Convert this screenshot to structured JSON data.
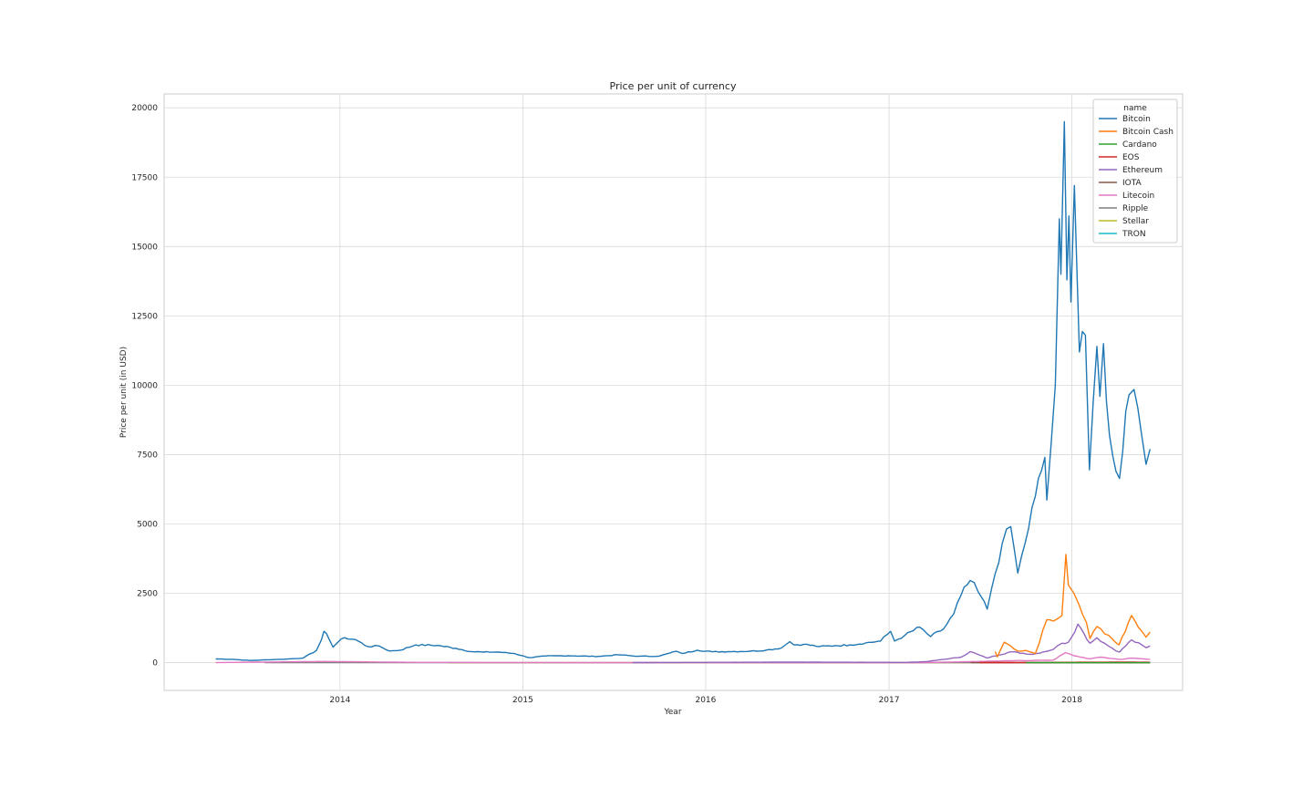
{
  "chart_data": {
    "type": "line",
    "title": "Price per unit of currency",
    "xlabel": "Year",
    "ylabel": "Price per unit (in USD)",
    "xlim": [
      "2013-01-15",
      "2018-08-10"
    ],
    "ylim": [
      -1000,
      20500
    ],
    "x_ticks": [
      "2014",
      "2015",
      "2016",
      "2017",
      "2018"
    ],
    "y_ticks": [
      0,
      2500,
      5000,
      7500,
      10000,
      12500,
      15000,
      17500,
      20000
    ],
    "grid": true,
    "legend": {
      "title": "name",
      "position": "top-right"
    },
    "series": [
      {
        "name": "Bitcoin",
        "color": "#1f77b4",
        "points": [
          [
            "2013-04-28",
            135
          ],
          [
            "2013-06-01",
            122
          ],
          [
            "2013-07-05",
            78
          ],
          [
            "2013-08-10",
            104
          ],
          [
            "2013-09-15",
            128
          ],
          [
            "2013-10-20",
            170
          ],
          [
            "2013-11-15",
            440
          ],
          [
            "2013-11-25",
            820
          ],
          [
            "2013-11-30",
            1130
          ],
          [
            "2013-12-05",
            1050
          ],
          [
            "2013-12-18",
            560
          ],
          [
            "2013-12-28",
            740
          ],
          [
            "2014-01-10",
            900
          ],
          [
            "2014-02-01",
            830
          ],
          [
            "2014-02-25",
            580
          ],
          [
            "2014-03-20",
            600
          ],
          [
            "2014-04-10",
            420
          ],
          [
            "2014-05-01",
            450
          ],
          [
            "2014-06-01",
            640
          ],
          [
            "2014-07-15",
            620
          ],
          [
            "2014-08-20",
            520
          ],
          [
            "2014-09-20",
            400
          ],
          [
            "2014-10-15",
            380
          ],
          [
            "2014-11-15",
            380
          ],
          [
            "2014-12-15",
            330
          ],
          [
            "2015-01-14",
            180
          ],
          [
            "2015-02-15",
            240
          ],
          [
            "2015-04-01",
            250
          ],
          [
            "2015-06-01",
            225
          ],
          [
            "2015-07-10",
            285
          ],
          [
            "2015-08-20",
            230
          ],
          [
            "2015-09-30",
            236
          ],
          [
            "2015-11-04",
            410
          ],
          [
            "2015-11-15",
            330
          ],
          [
            "2015-12-15",
            450
          ],
          [
            "2016-01-15",
            390
          ],
          [
            "2016-02-15",
            400
          ],
          [
            "2016-03-30",
            415
          ],
          [
            "2016-04-30",
            450
          ],
          [
            "2016-05-31",
            530
          ],
          [
            "2016-06-17",
            760
          ],
          [
            "2016-06-25",
            640
          ],
          [
            "2016-07-15",
            665
          ],
          [
            "2016-08-15",
            580
          ],
          [
            "2016-09-15",
            610
          ],
          [
            "2016-10-15",
            640
          ],
          [
            "2016-11-15",
            710
          ],
          [
            "2016-12-15",
            780
          ],
          [
            "2017-01-04",
            1130
          ],
          [
            "2017-01-12",
            780
          ],
          [
            "2017-02-01",
            980
          ],
          [
            "2017-03-03",
            1280
          ],
          [
            "2017-03-25",
            940
          ],
          [
            "2017-04-20",
            1220
          ],
          [
            "2017-05-10",
            1750
          ],
          [
            "2017-05-25",
            2450
          ],
          [
            "2017-06-12",
            2960
          ],
          [
            "2017-06-28",
            2550
          ],
          [
            "2017-07-16",
            1930
          ],
          [
            "2017-07-25",
            2700
          ],
          [
            "2017-08-15",
            4300
          ],
          [
            "2017-09-01",
            4900
          ],
          [
            "2017-09-15",
            3230
          ],
          [
            "2017-09-30",
            4340
          ],
          [
            "2017-10-20",
            6000
          ],
          [
            "2017-11-08",
            7400
          ],
          [
            "2017-11-12",
            5860
          ],
          [
            "2017-11-29",
            10000
          ],
          [
            "2017-12-07",
            16000
          ],
          [
            "2017-12-10",
            14000
          ],
          [
            "2017-12-17",
            19500
          ],
          [
            "2017-12-22",
            13800
          ],
          [
            "2017-12-26",
            16100
          ],
          [
            "2017-12-30",
            13000
          ],
          [
            "2018-01-06",
            17200
          ],
          [
            "2018-01-16",
            11200
          ],
          [
            "2018-01-28",
            11800
          ],
          [
            "2018-02-05",
            6950
          ],
          [
            "2018-02-20",
            11400
          ],
          [
            "2018-02-26",
            9600
          ],
          [
            "2018-03-05",
            11500
          ],
          [
            "2018-03-17",
            8200
          ],
          [
            "2018-03-30",
            6900
          ],
          [
            "2018-04-06",
            6640
          ],
          [
            "2018-04-25",
            9650
          ],
          [
            "2018-05-05",
            9850
          ],
          [
            "2018-05-20",
            8250
          ],
          [
            "2018-05-29",
            7150
          ],
          [
            "2018-06-06",
            7700
          ]
        ]
      },
      {
        "name": "Bitcoin Cash",
        "color": "#ff7f0e",
        "points": [
          [
            "2017-08-01",
            400
          ],
          [
            "2017-08-05",
            210
          ],
          [
            "2017-08-19",
            740
          ],
          [
            "2017-09-01",
            600
          ],
          [
            "2017-09-15",
            420
          ],
          [
            "2017-10-01",
            440
          ],
          [
            "2017-10-20",
            330
          ],
          [
            "2017-11-12",
            1550
          ],
          [
            "2017-11-25",
            1500
          ],
          [
            "2017-12-12",
            1700
          ],
          [
            "2017-12-20",
            3900
          ],
          [
            "2017-12-25",
            2800
          ],
          [
            "2018-01-05",
            2500
          ],
          [
            "2018-01-15",
            2100
          ],
          [
            "2018-01-30",
            1450
          ],
          [
            "2018-02-06",
            870
          ],
          [
            "2018-02-20",
            1300
          ],
          [
            "2018-03-15",
            990
          ],
          [
            "2018-04-05",
            640
          ],
          [
            "2018-04-30",
            1700
          ],
          [
            "2018-05-20",
            1150
          ],
          [
            "2018-05-29",
            920
          ],
          [
            "2018-06-06",
            1100
          ]
        ]
      },
      {
        "name": "Cardano",
        "color": "#2ca02c",
        "points": [
          [
            "2017-10-01",
            0.03
          ],
          [
            "2017-12-01",
            0.13
          ],
          [
            "2018-01-04",
            1.1
          ],
          [
            "2018-03-01",
            0.3
          ],
          [
            "2018-06-06",
            0.22
          ]
        ]
      },
      {
        "name": "EOS",
        "color": "#d62728",
        "points": [
          [
            "2017-07-01",
            2
          ],
          [
            "2017-12-01",
            7
          ],
          [
            "2018-01-15",
            15
          ],
          [
            "2018-04-29",
            20
          ],
          [
            "2018-06-06",
            14
          ]
        ]
      },
      {
        "name": "Ethereum",
        "color": "#9467bd",
        "points": [
          [
            "2015-08-08",
            2
          ],
          [
            "2016-06-15",
            20
          ],
          [
            "2017-02-01",
            10
          ],
          [
            "2017-03-15",
            35
          ],
          [
            "2017-05-25",
            200
          ],
          [
            "2017-06-12",
            400
          ],
          [
            "2017-07-15",
            170
          ],
          [
            "2017-09-01",
            390
          ],
          [
            "2017-10-15",
            300
          ],
          [
            "2017-11-25",
            480
          ],
          [
            "2017-12-12",
            700
          ],
          [
            "2017-12-25",
            740
          ],
          [
            "2018-01-13",
            1390
          ],
          [
            "2018-01-25",
            1050
          ],
          [
            "2018-02-06",
            700
          ],
          [
            "2018-02-20",
            900
          ],
          [
            "2018-03-15",
            600
          ],
          [
            "2018-04-06",
            380
          ],
          [
            "2018-04-30",
            820
          ],
          [
            "2018-05-29",
            540
          ],
          [
            "2018-06-06",
            600
          ]
        ]
      },
      {
        "name": "IOTA",
        "color": "#8c564b",
        "points": [
          [
            "2017-06-13",
            0.6
          ],
          [
            "2017-12-20",
            4.5
          ],
          [
            "2018-02-01",
            2.5
          ],
          [
            "2018-06-06",
            1.6
          ]
        ]
      },
      {
        "name": "Litecoin",
        "color": "#e377c2",
        "points": [
          [
            "2013-04-28",
            4
          ],
          [
            "2013-11-30",
            45
          ],
          [
            "2014-06-01",
            10
          ],
          [
            "2015-06-01",
            3
          ],
          [
            "2016-06-01",
            4
          ],
          [
            "2017-03-15",
            4
          ],
          [
            "2017-05-25",
            30
          ],
          [
            "2017-09-01",
            70
          ],
          [
            "2017-11-25",
            90
          ],
          [
            "2017-12-19",
            360
          ],
          [
            "2018-01-05",
            250
          ],
          [
            "2018-02-06",
            140
          ],
          [
            "2018-03-01",
            200
          ],
          [
            "2018-04-06",
            115
          ],
          [
            "2018-04-30",
            165
          ],
          [
            "2018-06-06",
            120
          ]
        ]
      },
      {
        "name": "Ripple",
        "color": "#7f7f7f",
        "points": [
          [
            "2013-08-04",
            0.005
          ],
          [
            "2017-05-15",
            0.35
          ],
          [
            "2018-01-04",
            3.4
          ],
          [
            "2018-06-06",
            0.65
          ]
        ]
      },
      {
        "name": "Stellar",
        "color": "#bcbd22",
        "points": [
          [
            "2014-08-05",
            0.003
          ],
          [
            "2017-05-15",
            0.04
          ],
          [
            "2018-01-04",
            0.9
          ],
          [
            "2018-06-06",
            0.28
          ]
        ]
      },
      {
        "name": "TRON",
        "color": "#17becf",
        "points": [
          [
            "2017-09-13",
            0.002
          ],
          [
            "2018-01-05",
            0.23
          ],
          [
            "2018-06-06",
            0.05
          ]
        ]
      }
    ]
  }
}
